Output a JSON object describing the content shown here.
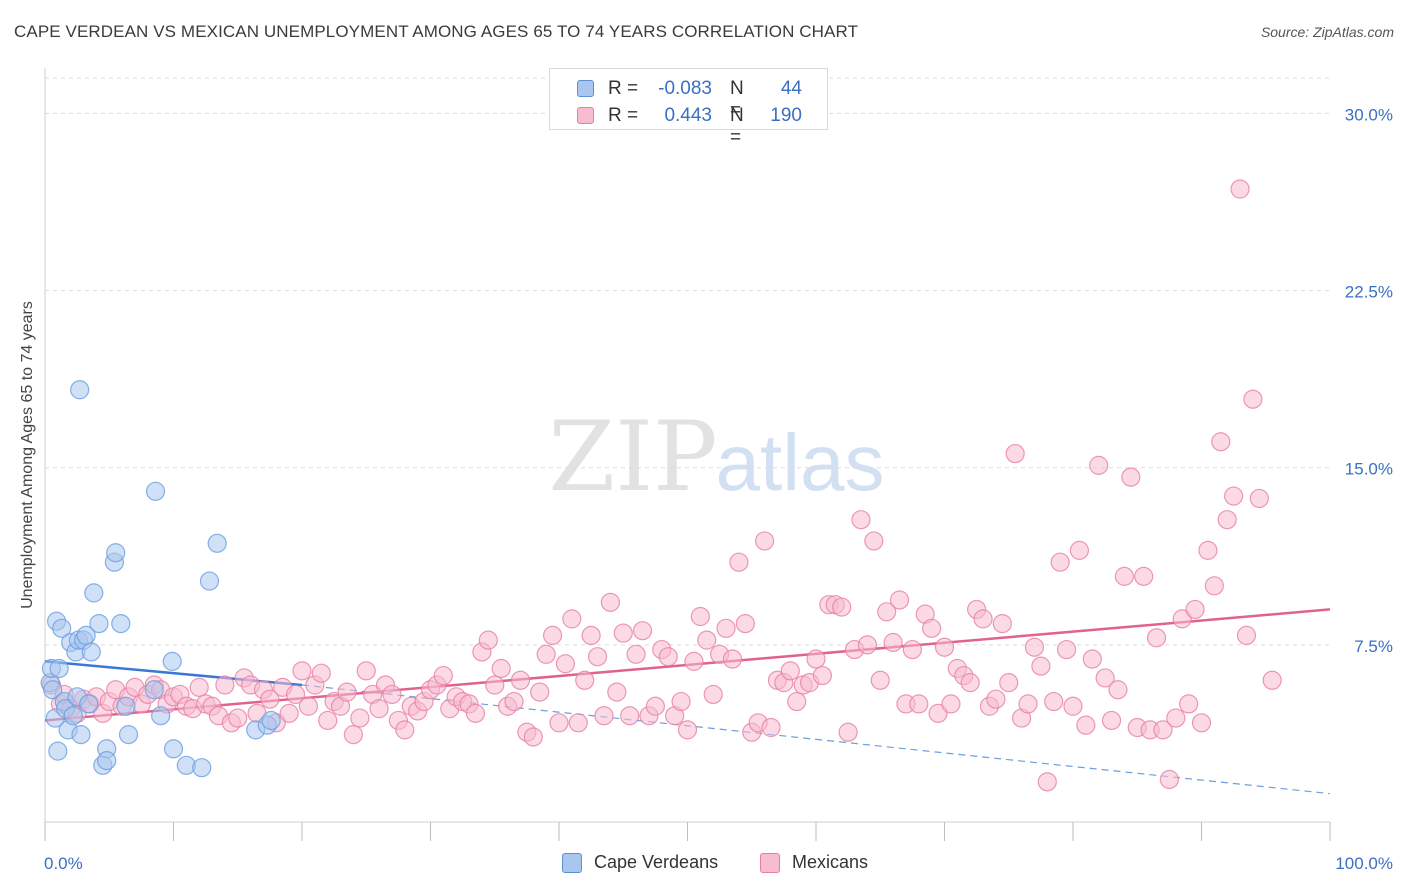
{
  "header": {
    "title": "CAPE VERDEAN VS MEXICAN UNEMPLOYMENT AMONG AGES 65 TO 74 YEARS CORRELATION CHART",
    "source": "Source: ZipAtlas.com"
  },
  "watermark": {
    "zip": "ZIP",
    "atlas": "atlas"
  },
  "legend_top": [
    {
      "r_label": "R =",
      "r_value": "-0.083",
      "n_label": "N =",
      "n_value": "44",
      "color": "#a9c6ee",
      "stroke": "#5b8fd6"
    },
    {
      "r_label": "R =",
      "r_value": "0.443",
      "n_label": "N =",
      "n_value": "190",
      "color": "#f7bccf",
      "stroke": "#e77fa3"
    }
  ],
  "legend_bottom": [
    {
      "label": "Cape Verdeans",
      "color": "#a9c6ee",
      "stroke": "#5b8fd6"
    },
    {
      "label": "Mexicans",
      "color": "#f7bccf",
      "stroke": "#e77fa3"
    }
  ],
  "chart_data": {
    "type": "scatter",
    "title": "CAPE VERDEAN VS MEXICAN UNEMPLOYMENT AMONG AGES 65 TO 74 YEARS CORRELATION CHART",
    "xlabel": "",
    "ylabel": "Unemployment Among Ages 65 to 74 years",
    "xlim": [
      0,
      100
    ],
    "ylim": [
      0,
      31.5
    ],
    "x_tick_labels": {
      "left": "0.0%",
      "right": "100.0%"
    },
    "y_ticks": [
      {
        "value": 7.5,
        "label": "7.5%"
      },
      {
        "value": 15.0,
        "label": "15.0%"
      },
      {
        "value": 22.5,
        "label": "22.5%"
      },
      {
        "value": 30.0,
        "label": "30.0%"
      }
    ],
    "grid": "horizontal dashed",
    "legend_position": "top-center",
    "series": [
      {
        "name": "Cape Verdeans",
        "color": "#6a9ee0",
        "fill": "#a9c6ee",
        "trend": {
          "x": [
            0,
            20
          ],
          "y": [
            6.8,
            5.8
          ],
          "extended_to": [
            100,
            1.2
          ]
        },
        "points": [
          [
            0.4,
            5.9
          ],
          [
            0.5,
            6.5
          ],
          [
            0.6,
            5.6
          ],
          [
            0.8,
            4.4
          ],
          [
            0.9,
            8.5
          ],
          [
            1.0,
            3.0
          ],
          [
            1.1,
            6.5
          ],
          [
            1.3,
            8.2
          ],
          [
            1.5,
            5.1
          ],
          [
            1.6,
            4.8
          ],
          [
            1.8,
            3.9
          ],
          [
            2.0,
            7.6
          ],
          [
            2.2,
            4.5
          ],
          [
            2.4,
            7.2
          ],
          [
            2.5,
            5.3
          ],
          [
            2.6,
            7.7
          ],
          [
            2.7,
            18.3
          ],
          [
            2.8,
            3.7
          ],
          [
            3.0,
            7.7
          ],
          [
            3.2,
            7.9
          ],
          [
            3.4,
            5.0
          ],
          [
            3.6,
            7.2
          ],
          [
            3.8,
            9.7
          ],
          [
            4.2,
            8.4
          ],
          [
            4.5,
            2.4
          ],
          [
            4.8,
            3.1
          ],
          [
            4.8,
            2.6
          ],
          [
            5.4,
            11.0
          ],
          [
            5.5,
            11.4
          ],
          [
            5.9,
            8.4
          ],
          [
            6.3,
            4.9
          ],
          [
            6.5,
            3.7
          ],
          [
            8.5,
            5.6
          ],
          [
            8.6,
            14.0
          ],
          [
            9.0,
            4.5
          ],
          [
            9.9,
            6.8
          ],
          [
            10.0,
            3.1
          ],
          [
            11.0,
            2.4
          ],
          [
            12.2,
            2.3
          ],
          [
            12.8,
            10.2
          ],
          [
            13.4,
            11.8
          ],
          [
            16.4,
            3.9
          ],
          [
            17.3,
            4.1
          ],
          [
            17.6,
            4.3
          ]
        ]
      },
      {
        "name": "Mexicans",
        "color": "#e77fa3",
        "fill": "#f7bccf",
        "trend": {
          "x": [
            0,
            100
          ],
          "y": [
            4.3,
            9.0
          ]
        },
        "points": [
          [
            0.5,
            5.8
          ],
          [
            1.2,
            5.0
          ],
          [
            1.5,
            5.4
          ],
          [
            2.0,
            4.8
          ],
          [
            2.5,
            4.6
          ],
          [
            3.0,
            5.2
          ],
          [
            3.5,
            5.0
          ],
          [
            4.0,
            5.3
          ],
          [
            4.5,
            4.6
          ],
          [
            5.0,
            5.1
          ],
          [
            5.5,
            5.6
          ],
          [
            6.0,
            4.9
          ],
          [
            6.5,
            5.3
          ],
          [
            7.0,
            5.7
          ],
          [
            7.5,
            5.0
          ],
          [
            8.0,
            5.4
          ],
          [
            8.5,
            5.8
          ],
          [
            9.0,
            5.6
          ],
          [
            9.5,
            5.0
          ],
          [
            10.0,
            5.3
          ],
          [
            10.5,
            5.4
          ],
          [
            11.0,
            4.9
          ],
          [
            11.5,
            4.8
          ],
          [
            12.0,
            5.7
          ],
          [
            12.5,
            5.0
          ],
          [
            13.0,
            4.9
          ],
          [
            13.5,
            4.5
          ],
          [
            14.0,
            5.8
          ],
          [
            14.5,
            4.2
          ],
          [
            15.0,
            4.4
          ],
          [
            15.5,
            6.1
          ],
          [
            16.0,
            5.8
          ],
          [
            16.5,
            4.6
          ],
          [
            17.0,
            5.6
          ],
          [
            17.5,
            5.2
          ],
          [
            18.0,
            4.2
          ],
          [
            18.5,
            5.7
          ],
          [
            19.0,
            4.6
          ],
          [
            19.5,
            5.4
          ],
          [
            20.0,
            6.4
          ],
          [
            20.5,
            4.9
          ],
          [
            21.0,
            5.8
          ],
          [
            21.5,
            6.3
          ],
          [
            22.0,
            4.3
          ],
          [
            22.5,
            5.1
          ],
          [
            23.0,
            4.9
          ],
          [
            23.5,
            5.5
          ],
          [
            24.0,
            3.7
          ],
          [
            24.5,
            4.4
          ],
          [
            25.0,
            6.4
          ],
          [
            25.5,
            5.4
          ],
          [
            26.0,
            4.8
          ],
          [
            26.5,
            5.8
          ],
          [
            27.0,
            5.4
          ],
          [
            27.5,
            4.3
          ],
          [
            28.0,
            3.9
          ],
          [
            28.5,
            4.9
          ],
          [
            29.0,
            4.7
          ],
          [
            29.5,
            5.1
          ],
          [
            30.0,
            5.6
          ],
          [
            30.5,
            5.8
          ],
          [
            31.0,
            6.2
          ],
          [
            31.5,
            4.8
          ],
          [
            32.0,
            5.3
          ],
          [
            32.5,
            5.1
          ],
          [
            33.0,
            5.0
          ],
          [
            33.5,
            4.6
          ],
          [
            34.0,
            7.2
          ],
          [
            34.5,
            7.7
          ],
          [
            35.0,
            5.8
          ],
          [
            35.5,
            6.5
          ],
          [
            36.0,
            4.9
          ],
          [
            36.5,
            5.1
          ],
          [
            37.0,
            6.0
          ],
          [
            37.5,
            3.8
          ],
          [
            38.0,
            3.6
          ],
          [
            38.5,
            5.5
          ],
          [
            39.0,
            7.1
          ],
          [
            39.5,
            7.9
          ],
          [
            40.0,
            4.2
          ],
          [
            40.5,
            6.7
          ],
          [
            41.0,
            8.6
          ],
          [
            41.5,
            4.2
          ],
          [
            42.0,
            6.0
          ],
          [
            42.5,
            7.9
          ],
          [
            43.0,
            7.0
          ],
          [
            43.5,
            4.5
          ],
          [
            44.0,
            9.3
          ],
          [
            44.5,
            5.5
          ],
          [
            45.0,
            8.0
          ],
          [
            45.5,
            4.5
          ],
          [
            46.0,
            7.1
          ],
          [
            46.5,
            8.1
          ],
          [
            47.0,
            4.5
          ],
          [
            47.5,
            4.9
          ],
          [
            48.0,
            7.3
          ],
          [
            48.5,
            7.0
          ],
          [
            49.0,
            4.5
          ],
          [
            49.5,
            5.1
          ],
          [
            50.0,
            3.9
          ],
          [
            50.5,
            6.8
          ],
          [
            51.0,
            8.7
          ],
          [
            51.5,
            7.7
          ],
          [
            52.0,
            5.4
          ],
          [
            52.5,
            7.1
          ],
          [
            53.0,
            8.2
          ],
          [
            53.5,
            6.9
          ],
          [
            54.0,
            11.0
          ],
          [
            54.5,
            8.4
          ],
          [
            55.0,
            3.8
          ],
          [
            55.5,
            4.2
          ],
          [
            56.0,
            11.9
          ],
          [
            56.5,
            4.0
          ],
          [
            57.0,
            6.0
          ],
          [
            57.5,
            5.9
          ],
          [
            58.0,
            6.4
          ],
          [
            58.5,
            5.1
          ],
          [
            59.0,
            5.8
          ],
          [
            59.5,
            5.9
          ],
          [
            60.0,
            6.9
          ],
          [
            60.5,
            6.2
          ],
          [
            61.0,
            9.2
          ],
          [
            61.5,
            9.2
          ],
          [
            62.0,
            9.1
          ],
          [
            62.5,
            3.8
          ],
          [
            63.0,
            7.3
          ],
          [
            63.5,
            12.8
          ],
          [
            64.0,
            7.5
          ],
          [
            64.5,
            11.9
          ],
          [
            65.0,
            6.0
          ],
          [
            65.5,
            8.9
          ],
          [
            66.0,
            7.6
          ],
          [
            66.5,
            9.4
          ],
          [
            67.0,
            5.0
          ],
          [
            67.5,
            7.3
          ],
          [
            68.0,
            5.0
          ],
          [
            68.5,
            8.8
          ],
          [
            69.0,
            8.2
          ],
          [
            69.5,
            4.6
          ],
          [
            70.0,
            7.4
          ],
          [
            70.5,
            5.0
          ],
          [
            71.0,
            6.5
          ],
          [
            71.5,
            6.2
          ],
          [
            72.0,
            5.9
          ],
          [
            72.5,
            9.0
          ],
          [
            73.0,
            8.6
          ],
          [
            73.5,
            4.9
          ],
          [
            74.0,
            5.2
          ],
          [
            74.5,
            8.4
          ],
          [
            75.0,
            5.9
          ],
          [
            75.5,
            15.6
          ],
          [
            76.0,
            4.4
          ],
          [
            76.5,
            5.0
          ],
          [
            77.0,
            7.4
          ],
          [
            77.5,
            6.6
          ],
          [
            78.0,
            1.7
          ],
          [
            78.5,
            5.1
          ],
          [
            79.0,
            11.0
          ],
          [
            79.5,
            7.3
          ],
          [
            80.0,
            4.9
          ],
          [
            80.5,
            11.5
          ],
          [
            81.0,
            4.1
          ],
          [
            81.5,
            6.9
          ],
          [
            82.0,
            15.1
          ],
          [
            82.5,
            6.1
          ],
          [
            83.0,
            4.3
          ],
          [
            83.5,
            5.6
          ],
          [
            84.0,
            10.4
          ],
          [
            84.5,
            14.6
          ],
          [
            85.0,
            4.0
          ],
          [
            85.5,
            10.4
          ],
          [
            86.0,
            3.9
          ],
          [
            86.5,
            7.8
          ],
          [
            87.0,
            3.9
          ],
          [
            87.5,
            1.8
          ],
          [
            88.0,
            4.4
          ],
          [
            88.5,
            8.6
          ],
          [
            89.0,
            5.0
          ],
          [
            89.5,
            9.0
          ],
          [
            90.0,
            4.2
          ],
          [
            90.5,
            11.5
          ],
          [
            91.0,
            10.0
          ],
          [
            91.5,
            16.1
          ],
          [
            92.0,
            12.8
          ],
          [
            92.5,
            13.8
          ],
          [
            93.0,
            26.8
          ],
          [
            93.5,
            7.9
          ],
          [
            94.0,
            17.9
          ],
          [
            94.5,
            13.7
          ],
          [
            95.5,
            6.0
          ]
        ]
      }
    ]
  }
}
